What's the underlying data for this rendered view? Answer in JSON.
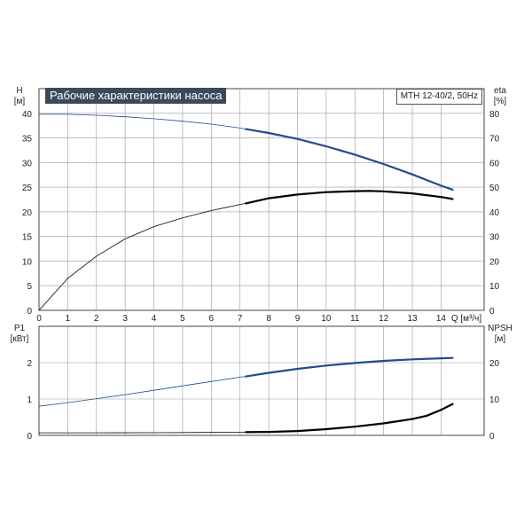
{
  "title": "Рабочие характеристики насоса",
  "model": "MTH 12-40/2, 50Hz",
  "colors": {
    "blue": "#1f4e8c",
    "black": "#000000",
    "grid": "#9a9a9a"
  },
  "chart_data": [
    {
      "type": "line",
      "name": "upper",
      "xlabel": "Q [м³/ч]",
      "ylabel_left": [
        "H",
        "[м]"
      ],
      "ylabel_right": [
        "eta",
        "[%]"
      ],
      "xlim": [
        0,
        15.5
      ],
      "ylim_left": [
        0,
        45
      ],
      "ylim_right": [
        0,
        90
      ],
      "x_ticks": [
        0,
        1,
        2,
        3,
        4,
        5,
        6,
        7,
        8,
        9,
        10,
        11,
        12,
        13,
        14
      ],
      "y_ticks_left": [
        0,
        5,
        10,
        15,
        20,
        25,
        30,
        35,
        40
      ],
      "y_ticks_right": [
        0,
        10,
        20,
        30,
        40,
        50,
        60,
        70,
        80
      ],
      "grid": true,
      "series": [
        {
          "axis": "left",
          "color": "#1f4e8c",
          "thick_from": 7.2,
          "x": [
            0,
            1,
            2,
            3,
            4,
            5,
            6,
            7,
            7.2,
            8,
            9,
            10,
            11,
            12,
            13,
            14,
            14.4
          ],
          "y": [
            39.8,
            39.8,
            39.6,
            39.3,
            38.9,
            38.4,
            37.8,
            37.0,
            36.8,
            36.0,
            34.8,
            33.3,
            31.6,
            29.7,
            27.6,
            25.3,
            24.5
          ]
        },
        {
          "axis": "right",
          "color": "#000000",
          "thick_from": 7.2,
          "x": [
            0,
            1,
            2,
            3,
            4,
            5,
            6,
            7,
            7.2,
            8,
            9,
            10,
            11,
            11.5,
            12,
            13,
            14,
            14.4
          ],
          "y": [
            0,
            13,
            22,
            29,
            34,
            37.5,
            40.5,
            43,
            43.4,
            45.5,
            47,
            48,
            48.4,
            48.5,
            48.3,
            47.5,
            46.0,
            45.2
          ]
        }
      ]
    },
    {
      "type": "line",
      "name": "lower",
      "ylabel_left": [
        "P1",
        "[кВт]"
      ],
      "ylabel_right": [
        "NPSH",
        "[м]"
      ],
      "xlim": [
        0,
        15.5
      ],
      "ylim_left": [
        0,
        3
      ],
      "ylim_right": [
        0,
        30
      ],
      "y_ticks_left": [
        0,
        1,
        2
      ],
      "y_ticks_right": [
        0,
        10,
        20
      ],
      "grid": true,
      "series": [
        {
          "axis": "left",
          "color": "#1f4e8c",
          "thick_from": 7.2,
          "x": [
            0,
            1,
            2,
            3,
            4,
            5,
            6,
            7,
            7.2,
            8,
            9,
            10,
            11,
            12,
            13,
            14,
            14.4
          ],
          "y": [
            0.8,
            0.9,
            1.01,
            1.12,
            1.24,
            1.36,
            1.48,
            1.6,
            1.62,
            1.72,
            1.83,
            1.92,
            1.99,
            2.05,
            2.09,
            2.12,
            2.13
          ]
        },
        {
          "axis": "right",
          "color": "#000000",
          "thick_from": 7.2,
          "x": [
            0,
            2,
            4,
            6,
            7,
            7.2,
            8,
            9,
            10,
            11,
            12,
            13,
            13.5,
            14,
            14.4
          ],
          "y": [
            0.7,
            0.7,
            0.72,
            0.8,
            0.85,
            0.87,
            0.95,
            1.2,
            1.7,
            2.4,
            3.3,
            4.5,
            5.4,
            7.0,
            8.6
          ]
        }
      ]
    }
  ]
}
